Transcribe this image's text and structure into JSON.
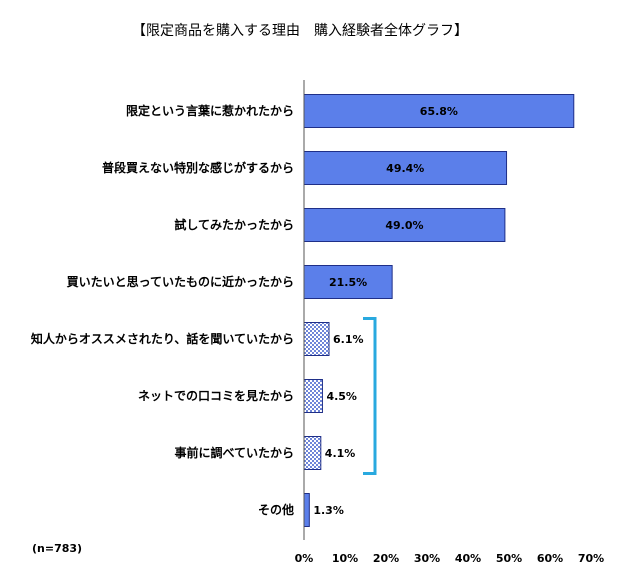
{
  "chart_data": {
    "type": "bar",
    "orientation": "horizontal",
    "title": "【限定商品を購入する理由　購入経験者全体グラフ】",
    "categories": [
      "限定という言葉に惹かれたから",
      "普段買えない特別な感じがするから",
      "試してみたかったから",
      "買いたいと思っていたものに近かったから",
      "知人からオススメされたり、話を聞いていたから",
      "ネットでの口コミを見たから",
      "事前に調べていたから",
      "その他"
    ],
    "values": [
      65.8,
      49.4,
      49.0,
      21.5,
      6.1,
      4.5,
      4.1,
      1.3
    ],
    "value_labels": [
      "65.8%",
      "49.4%",
      "49.0%",
      "21.5%",
      "6.1%",
      "4.5%",
      "4.1%",
      "1.3%"
    ],
    "patterned_categories": [
      4,
      5,
      6
    ],
    "bracket_categories": [
      4,
      6
    ],
    "xlim": [
      0,
      70
    ],
    "x_ticks": [
      0,
      10,
      20,
      30,
      40,
      50,
      60,
      70
    ],
    "x_tick_labels": [
      "0%",
      "10%",
      "20%",
      "30%",
      "40%",
      "50%",
      "60%",
      "70%"
    ],
    "grid": false,
    "sample_note": "(n=783)",
    "colors": {
      "bar_fill": "#5b7fea",
      "bar_stroke": "#1f2f88",
      "pattern": "#1f2f88",
      "bracket": "#29a9df"
    }
  }
}
